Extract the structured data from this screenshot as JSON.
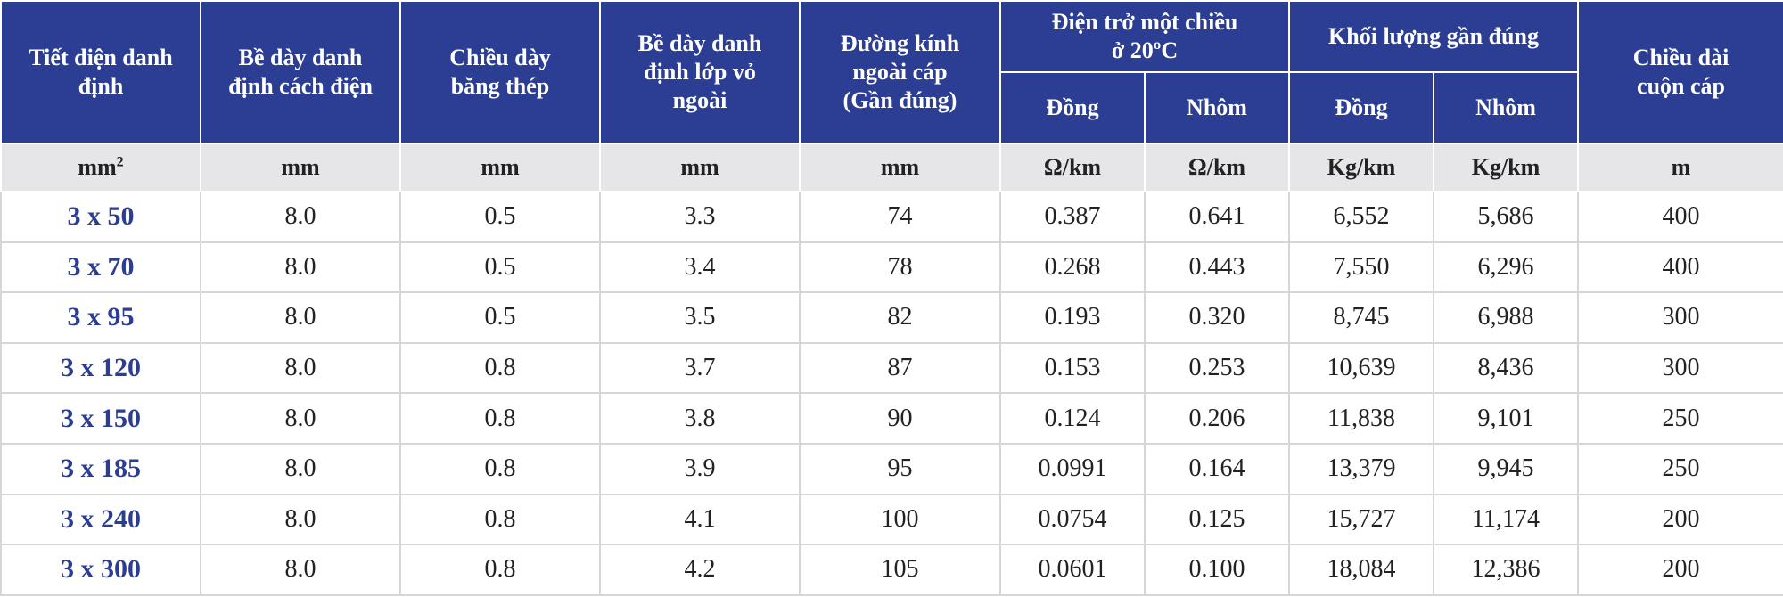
{
  "table": {
    "headers": {
      "tiet_dien": [
        "Tiết diện danh",
        "định"
      ],
      "cach_dien": [
        "Bề dày danh",
        "định cách điện"
      ],
      "bang_thep": [
        "Chiều dày",
        "băng thép"
      ],
      "lop_vo": [
        "Bề dày danh",
        "định lớp vỏ",
        "ngoài"
      ],
      "duong_kinh": [
        "Đường kính",
        "ngoài cáp",
        "(Gần đúng)"
      ],
      "dien_tro": [
        "Điện trở một chiều",
        "ở 20ºC"
      ],
      "khoi_luong": [
        "Khối lượng gần đúng"
      ],
      "chieu_dai": [
        "Chiều dài",
        "cuộn cáp"
      ],
      "dien_tro_dong": "Đồng",
      "dien_tro_nhom": "Nhôm",
      "khoi_luong_dong": "Đồng",
      "khoi_luong_nhom": "Nhôm"
    },
    "units": {
      "tiet_dien_base": "mm",
      "tiet_dien_sup": "2",
      "cach_dien": "mm",
      "bang_thep": "mm",
      "lop_vo": "mm",
      "duong_kinh": "mm",
      "dien_tro_dong": "Ω/km",
      "dien_tro_nhom": "Ω/km",
      "khoi_luong_dong": "Kg/km",
      "khoi_luong_nhom": "Kg/km",
      "chieu_dai": "m"
    },
    "rows": [
      [
        "3 x 50",
        "8.0",
        "0.5",
        "3.3",
        "74",
        "0.387",
        "0.641",
        "6,552",
        "5,686",
        "400"
      ],
      [
        "3 x 70",
        "8.0",
        "0.5",
        "3.4",
        "78",
        "0.268",
        "0.443",
        "7,550",
        "6,296",
        "400"
      ],
      [
        "3 x 95",
        "8.0",
        "0.5",
        "3.5",
        "82",
        "0.193",
        "0.320",
        "8,745",
        "6,988",
        "300"
      ],
      [
        "3 x 120",
        "8.0",
        "0.8",
        "3.7",
        "87",
        "0.153",
        "0.253",
        "10,639",
        "8,436",
        "300"
      ],
      [
        "3 x 150",
        "8.0",
        "0.8",
        "3.8",
        "90",
        "0.124",
        "0.206",
        "11,838",
        "9,101",
        "250"
      ],
      [
        "3 x 185",
        "8.0",
        "0.8",
        "3.9",
        "95",
        "0.0991",
        "0.164",
        "13,379",
        "9,945",
        "250"
      ],
      [
        "3 x 240",
        "8.0",
        "0.8",
        "4.1",
        "100",
        "0.0754",
        "0.125",
        "15,727",
        "11,174",
        "200"
      ],
      [
        "3 x 300",
        "8.0",
        "0.8",
        "4.2",
        "105",
        "0.0601",
        "0.100",
        "18,084",
        "12,386",
        "200"
      ]
    ],
    "colors": {
      "header_bg": "#2c3e93",
      "units_bg": "#e6e6e8",
      "size_text": "#2c3e93"
    }
  }
}
